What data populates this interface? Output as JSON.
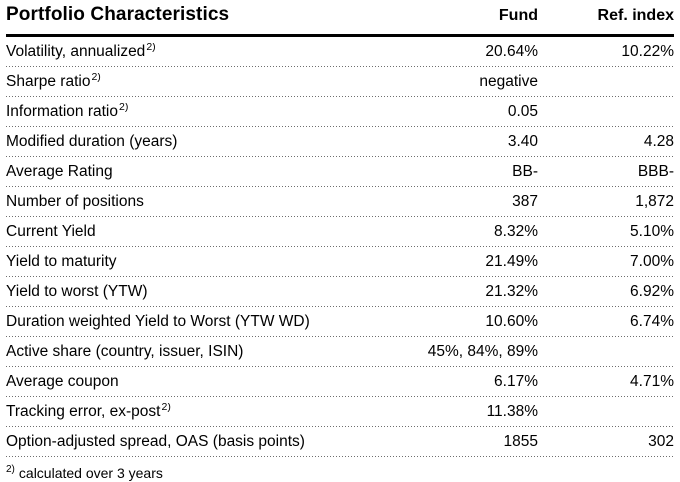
{
  "table": {
    "title": "Portfolio Characteristics",
    "columns": {
      "fund": "Fund",
      "ref": "Ref. index"
    },
    "rows": [
      {
        "label": "Volatility, annualized",
        "sup": "2)",
        "fund": "20.64%",
        "ref": "10.22%"
      },
      {
        "label": "Sharpe ratio",
        "sup": "2)",
        "fund": "negative",
        "ref": ""
      },
      {
        "label": "Information ratio",
        "sup": "2)",
        "fund": "0.05",
        "ref": ""
      },
      {
        "label": "Modified duration (years)",
        "sup": "",
        "fund": "3.40",
        "ref": "4.28"
      },
      {
        "label": "Average Rating",
        "sup": "",
        "fund": "BB-",
        "ref": "BBB-"
      },
      {
        "label": "Number of positions",
        "sup": "",
        "fund": "387",
        "ref": "1,872"
      },
      {
        "label": "Current Yield",
        "sup": "",
        "fund": "8.32%",
        "ref": "5.10%"
      },
      {
        "label": "Yield to maturity",
        "sup": "",
        "fund": "21.49%",
        "ref": "7.00%"
      },
      {
        "label": "Yield to worst (YTW)",
        "sup": "",
        "fund": "21.32%",
        "ref": "6.92%"
      },
      {
        "label": "Duration weighted Yield to Worst (YTW WD)",
        "sup": "",
        "fund": "10.60%",
        "ref": "6.74%"
      },
      {
        "label": "Active share (country, issuer, ISIN)",
        "sup": "",
        "fund": "45%, 84%, 89%",
        "ref": ""
      },
      {
        "label": "Average coupon",
        "sup": "",
        "fund": "6.17%",
        "ref": "4.71%"
      },
      {
        "label": "Tracking error, ex-post",
        "sup": "2)",
        "fund": "11.38%",
        "ref": ""
      },
      {
        "label": "Option-adjusted spread, OAS (basis points)",
        "sup": "",
        "fund": "1855",
        "ref": "302"
      }
    ],
    "footnote": {
      "marker": "2)",
      "text": "calculated over 3 years"
    }
  },
  "colors": {
    "text": "#000000",
    "header_rule": "#000000",
    "row_separator_dots": "#6e6e6e",
    "background": "#ffffff"
  }
}
